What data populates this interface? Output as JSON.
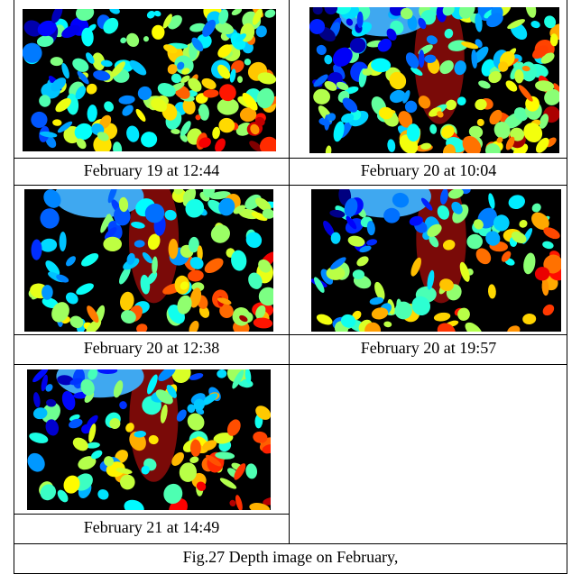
{
  "table": {
    "rows": [
      [
        "February 19 at 12:44",
        "February 20 at 10:04"
      ],
      [
        "February 20 at 12:38",
        "February 20 at 19:57"
      ],
      [
        "February 21 at 14:49"
      ]
    ],
    "caption": "Fig.27 Depth image on February,"
  }
}
